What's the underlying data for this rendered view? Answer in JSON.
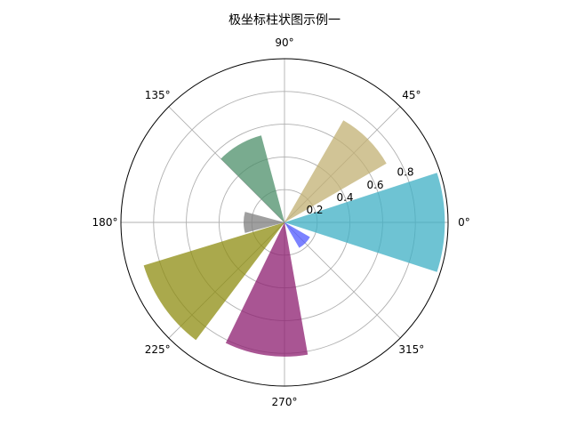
{
  "chart_data": {
    "type": "bar",
    "projection": "polar",
    "title": "极坐标柱状图示例一",
    "theta_unit": "deg",
    "theta_tick_labels": [
      "0°",
      "45°",
      "90°",
      "135°",
      "180°",
      "225°",
      "270°",
      "315°"
    ],
    "r_tick_labels": [
      "0.2",
      "0.4",
      "0.6",
      "0.8"
    ],
    "r_ticks": [
      0.2,
      0.4,
      0.6,
      0.8
    ],
    "rlim": [
      0,
      1.0
    ],
    "grid": true,
    "bars": [
      {
        "theta": 0,
        "width": 36,
        "r": 0.98,
        "color": "#3eafc4"
      },
      {
        "theta": 45,
        "width": 30,
        "r": 0.72,
        "color": "#c2b073"
      },
      {
        "theta": 120,
        "width": 30,
        "r": 0.55,
        "color": "#4c8f6a"
      },
      {
        "theta": 180,
        "width": 30,
        "r": 0.25,
        "color": "#7f7f7f"
      },
      {
        "theta": 215,
        "width": 36,
        "r": 0.9,
        "color": "#8e8c10"
      },
      {
        "theta": 262,
        "width": 36,
        "r": 0.82,
        "color": "#8c1c6f"
      },
      {
        "theta": 315,
        "width": 30,
        "r": 0.18,
        "color": "#4f58ff"
      }
    ],
    "bar_alpha": 0.75
  }
}
